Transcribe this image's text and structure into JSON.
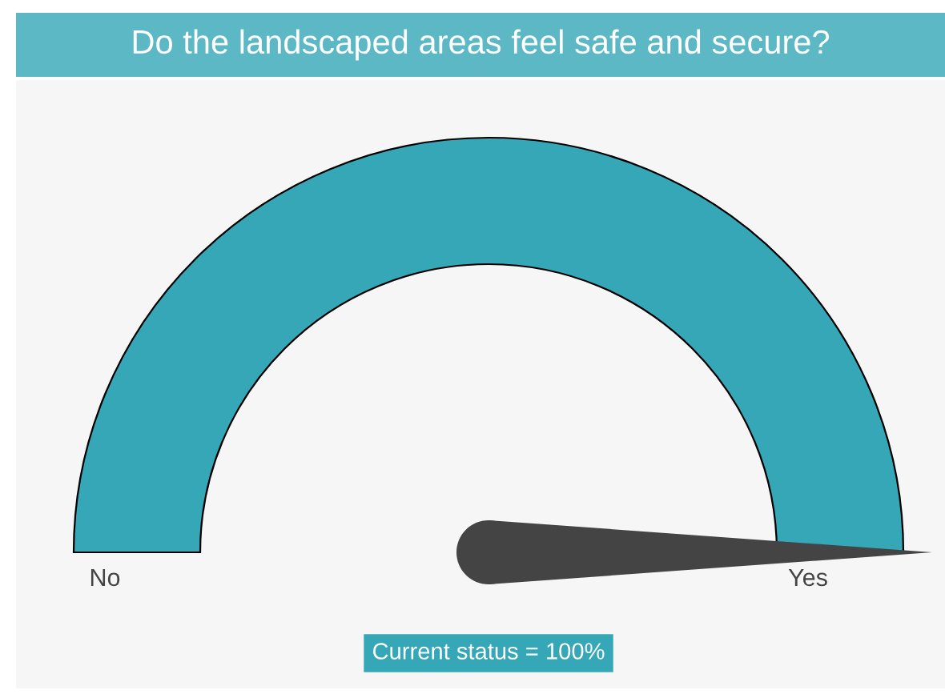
{
  "chart_data": {
    "type": "other",
    "title": "Do the landscaped areas feel safe and secure?",
    "values": [
      100
    ],
    "value_labels": [
      "Current status = 100%"
    ],
    "color": "#35a7b6",
    "annotations": [
      "No",
      "Yes"
    ]
  }
}
